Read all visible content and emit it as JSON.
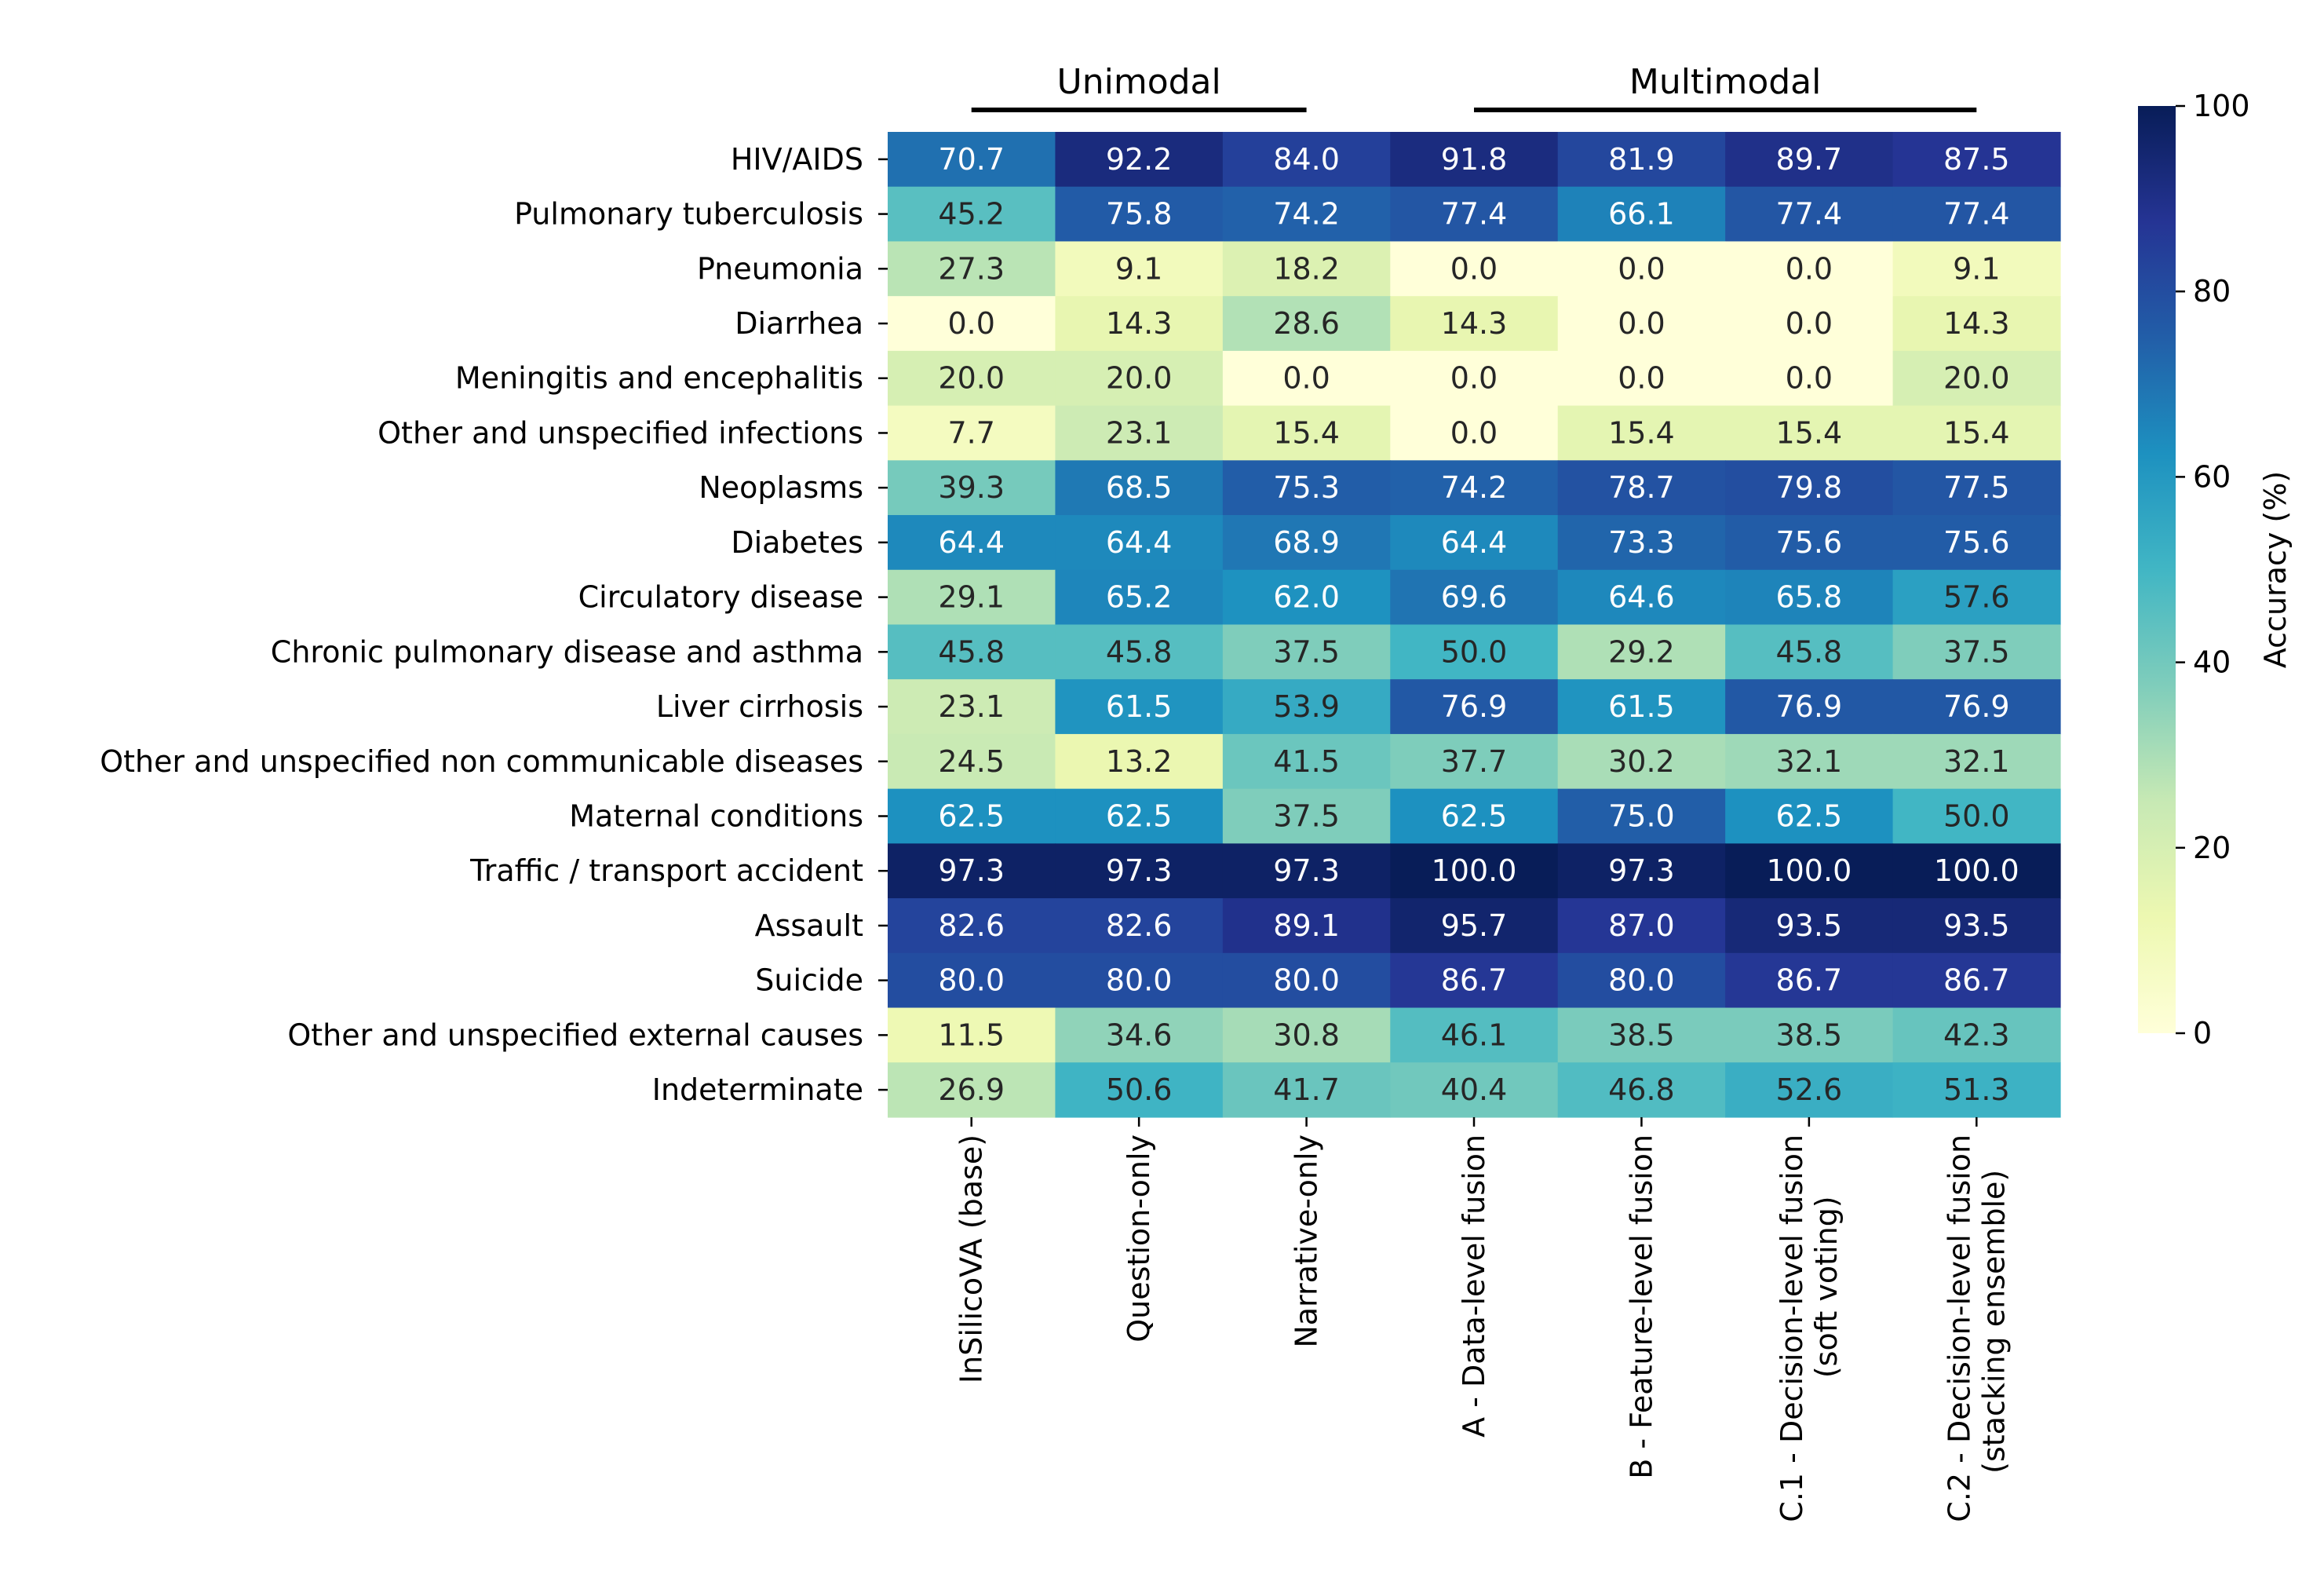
{
  "chart_data": {
    "type": "heatmap",
    "groups": [
      {
        "label": "Unimodal",
        "columns": [
          0,
          2
        ]
      },
      {
        "label": "Multimodal",
        "columns": [
          3,
          6
        ]
      }
    ],
    "columns": [
      [
        "InSilicoVA (base)"
      ],
      [
        "Question-only"
      ],
      [
        "Narrative-only"
      ],
      [
        "A - Data-level fusion"
      ],
      [
        "B - Feature-level fusion"
      ],
      [
        "C.1 - Decision-level fusion",
        "(soft voting)"
      ],
      [
        "C.2 - Decision-level fusion",
        "(stacking ensemble)"
      ]
    ],
    "rows": [
      "HIV/AIDS",
      "Pulmonary tuberculosis",
      "Pneumonia",
      "Diarrhea",
      "Meningitis and encephalitis",
      "Other and unspecified infections",
      "Neoplasms",
      "Diabetes",
      "Circulatory disease",
      "Chronic pulmonary disease and asthma",
      "Liver cirrhosis",
      "Other and unspecified non communicable diseases",
      "Maternal conditions",
      "Traffic / transport accident",
      "Assault",
      "Suicide",
      "Other and unspecified external causes",
      "Indeterminate"
    ],
    "values": [
      [
        70.7,
        92.2,
        84.0,
        91.8,
        81.9,
        89.7,
        87.5
      ],
      [
        45.2,
        75.8,
        74.2,
        77.4,
        66.1,
        77.4,
        77.4
      ],
      [
        27.3,
        9.1,
        18.2,
        0.0,
        0.0,
        0.0,
        9.1
      ],
      [
        0.0,
        14.3,
        28.6,
        14.3,
        0.0,
        0.0,
        14.3
      ],
      [
        20.0,
        20.0,
        0.0,
        0.0,
        0.0,
        0.0,
        20.0
      ],
      [
        7.7,
        23.1,
        15.4,
        0.0,
        15.4,
        15.4,
        15.4
      ],
      [
        39.3,
        68.5,
        75.3,
        74.2,
        78.7,
        79.8,
        77.5
      ],
      [
        64.4,
        64.4,
        68.9,
        64.4,
        73.3,
        75.6,
        75.6
      ],
      [
        29.1,
        65.2,
        62.0,
        69.6,
        64.6,
        65.8,
        57.6
      ],
      [
        45.8,
        45.8,
        37.5,
        50.0,
        29.2,
        45.8,
        37.5
      ],
      [
        23.1,
        61.5,
        53.9,
        76.9,
        61.5,
        76.9,
        76.9
      ],
      [
        24.5,
        13.2,
        41.5,
        37.7,
        30.2,
        32.1,
        32.1
      ],
      [
        62.5,
        62.5,
        37.5,
        62.5,
        75.0,
        62.5,
        50.0
      ],
      [
        97.3,
        97.3,
        97.3,
        100.0,
        97.3,
        100.0,
        100.0
      ],
      [
        82.6,
        82.6,
        89.1,
        95.7,
        87.0,
        93.5,
        93.5
      ],
      [
        80.0,
        80.0,
        80.0,
        86.7,
        80.0,
        86.7,
        86.7
      ],
      [
        11.5,
        34.6,
        30.8,
        46.1,
        38.5,
        38.5,
        42.3
      ],
      [
        26.9,
        50.6,
        41.7,
        40.4,
        46.8,
        52.6,
        51.3
      ]
    ],
    "colorbar": {
      "label": "Accuracy (%)",
      "range": [
        0,
        100
      ],
      "ticks": [
        0,
        20,
        40,
        60,
        80,
        100
      ],
      "colormap": "YlGnBu",
      "stops": [
        "#ffffd9",
        "#edf8b1",
        "#c7e9b4",
        "#7fcdbb",
        "#41b6c4",
        "#1d91c0",
        "#225ea8",
        "#253494",
        "#081d58"
      ]
    },
    "colors": {
      "line": "#000000",
      "text_dark": "#262626",
      "text_light": "#ffffff"
    }
  }
}
